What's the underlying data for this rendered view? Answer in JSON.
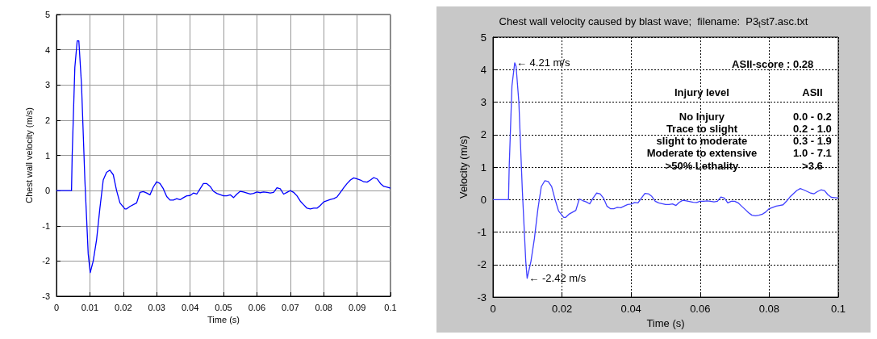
{
  "chart_data": [
    {
      "type": "line",
      "xlabel": "Time (s)",
      "ylabel": "Chest wall velocity (m/s)",
      "xlim": [
        0,
        0.1
      ],
      "ylim": [
        -3,
        5
      ],
      "xticks": [
        0,
        0.01,
        0.02,
        0.03,
        0.04,
        0.05,
        0.06,
        0.07,
        0.08,
        0.09,
        0.1
      ],
      "yticks": [
        -3,
        -2,
        -1,
        0,
        1,
        2,
        3,
        4,
        5
      ],
      "grid": true,
      "marker": "none",
      "line_style": "solid",
      "series": [
        {
          "color": "#0000ff",
          "x": [
            0,
            0.0045,
            0.0047,
            0.0055,
            0.0062,
            0.0067,
            0.0075,
            0.0085,
            0.0095,
            0.0101,
            0.011,
            0.012,
            0.013,
            0.014,
            0.015,
            0.016,
            0.017,
            0.018,
            0.019,
            0.0205,
            0.021,
            0.022,
            0.024,
            0.025,
            0.026,
            0.027,
            0.028,
            0.029,
            0.03,
            0.031,
            0.032,
            0.033,
            0.034,
            0.035,
            0.036,
            0.037,
            0.038,
            0.039,
            0.04,
            0.041,
            0.042,
            0.043,
            0.044,
            0.045,
            0.046,
            0.047,
            0.048,
            0.05,
            0.051,
            0.052,
            0.053,
            0.054,
            0.055,
            0.056,
            0.058,
            0.059,
            0.06,
            0.061,
            0.062,
            0.063,
            0.064,
            0.065,
            0.066,
            0.067,
            0.068,
            0.069,
            0.07,
            0.071,
            0.072,
            0.073,
            0.074,
            0.075,
            0.076,
            0.077,
            0.078,
            0.079,
            0.08,
            0.082,
            0.083,
            0.084,
            0.085,
            0.086,
            0.087,
            0.088,
            0.089,
            0.09,
            0.091,
            0.092,
            0.093,
            0.094,
            0.095,
            0.096,
            0.097,
            0.098,
            0.099,
            0.1
          ],
          "values": [
            0,
            0,
            1.0,
            3.5,
            4.25,
            4.25,
            3.0,
            0.3,
            -1.8,
            -2.33,
            -2.0,
            -1.4,
            -0.5,
            0.3,
            0.52,
            0.58,
            0.45,
            0.0,
            -0.35,
            -0.52,
            -0.52,
            -0.45,
            -0.35,
            -0.05,
            -0.03,
            -0.07,
            -0.12,
            0.1,
            0.25,
            0.2,
            0.05,
            -0.17,
            -0.27,
            -0.27,
            -0.23,
            -0.26,
            -0.2,
            -0.15,
            -0.14,
            -0.07,
            -0.1,
            0.05,
            0.2,
            0.2,
            0.12,
            -0.02,
            -0.08,
            -0.15,
            -0.15,
            -0.12,
            -0.2,
            -0.1,
            -0.02,
            -0.04,
            -0.1,
            -0.08,
            -0.04,
            -0.06,
            -0.04,
            -0.05,
            -0.07,
            -0.05,
            0.08,
            0.05,
            -0.1,
            -0.05,
            0.0,
            -0.05,
            -0.15,
            -0.3,
            -0.4,
            -0.5,
            -0.52,
            -0.5,
            -0.5,
            -0.42,
            -0.32,
            -0.25,
            -0.23,
            -0.18,
            -0.05,
            0.08,
            0.2,
            0.3,
            0.36,
            0.33,
            0.3,
            0.25,
            0.24,
            0.3,
            0.37,
            0.33,
            0.2,
            0.12,
            0.1,
            0.07
          ]
        }
      ]
    },
    {
      "type": "line",
      "title": "Chest wall velocity caused by blast wave;  filename:  P3$_{t}$st7.asc.txt",
      "xlabel": "Time (s)",
      "ylabel": "Velocity (m/s)",
      "xlim": [
        0,
        0.1
      ],
      "ylim": [
        -3,
        5
      ],
      "xticks": [
        0,
        0.02,
        0.04,
        0.06,
        0.08,
        0.1
      ],
      "yticks": [
        -3,
        -2,
        -1,
        0,
        1,
        2,
        3,
        4,
        5
      ],
      "grid": true,
      "marker": "none",
      "line_style": "solid",
      "annotations": [
        {
          "text": "← 4.21 m/s",
          "x": 0.0063,
          "y": 4.21
        },
        {
          "text": "← -2.42 m/s",
          "x": 0.0099,
          "y": -2.42
        },
        "ASII-score : 0.28",
        "Injury level",
        "ASII",
        "No Injury",
        "0.0 - 0.2",
        "Trace to slight",
        "0.2 - 1.0",
        "slight to moderate",
        "0.3 - 1.9",
        "Moderate to extensive",
        "1.0 - 7.1",
        ">50% Lethality",
        ">3.6"
      ],
      "series": [
        {
          "color": "#4040ff",
          "x": [
            0,
            0.0045,
            0.0047,
            0.0055,
            0.0063,
            0.0067,
            0.0075,
            0.0085,
            0.0095,
            0.0099,
            0.011,
            0.012,
            0.013,
            0.014,
            0.015,
            0.016,
            0.017,
            0.018,
            0.019,
            0.0205,
            0.021,
            0.022,
            0.024,
            0.025,
            0.026,
            0.027,
            0.028,
            0.029,
            0.03,
            0.031,
            0.032,
            0.033,
            0.034,
            0.035,
            0.036,
            0.037,
            0.038,
            0.039,
            0.04,
            0.041,
            0.042,
            0.043,
            0.044,
            0.045,
            0.046,
            0.047,
            0.048,
            0.05,
            0.051,
            0.052,
            0.053,
            0.054,
            0.055,
            0.056,
            0.058,
            0.059,
            0.06,
            0.061,
            0.062,
            0.063,
            0.064,
            0.065,
            0.066,
            0.067,
            0.068,
            0.069,
            0.07,
            0.071,
            0.072,
            0.073,
            0.074,
            0.075,
            0.076,
            0.077,
            0.078,
            0.079,
            0.08,
            0.082,
            0.083,
            0.084,
            0.085,
            0.086,
            0.087,
            0.088,
            0.089,
            0.09,
            0.091,
            0.092,
            0.093,
            0.094,
            0.095,
            0.096,
            0.097,
            0.098,
            0.099,
            0.1
          ],
          "values": [
            0,
            0,
            1.0,
            3.5,
            4.21,
            4.1,
            3.0,
            0.3,
            -1.9,
            -2.42,
            -1.9,
            -1.2,
            -0.3,
            0.4,
            0.58,
            0.56,
            0.4,
            0.0,
            -0.35,
            -0.55,
            -0.55,
            -0.45,
            -0.33,
            0.02,
            -0.03,
            -0.07,
            -0.13,
            0.05,
            0.2,
            0.18,
            0.05,
            -0.2,
            -0.28,
            -0.28,
            -0.24,
            -0.25,
            -0.2,
            -0.15,
            -0.14,
            -0.09,
            -0.1,
            0.05,
            0.19,
            0.18,
            0.1,
            -0.05,
            -0.1,
            -0.15,
            -0.15,
            -0.13,
            -0.18,
            -0.08,
            -0.02,
            -0.04,
            -0.08,
            -0.09,
            -0.05,
            -0.05,
            -0.04,
            -0.05,
            -0.07,
            -0.05,
            0.08,
            0.05,
            -0.1,
            -0.05,
            -0.05,
            -0.1,
            -0.2,
            -0.3,
            -0.4,
            -0.48,
            -0.5,
            -0.48,
            -0.45,
            -0.38,
            -0.28,
            -0.2,
            -0.18,
            -0.16,
            -0.05,
            0.08,
            0.18,
            0.28,
            0.34,
            0.3,
            0.25,
            0.2,
            0.18,
            0.25,
            0.3,
            0.28,
            0.15,
            0.07,
            0.06,
            0.05
          ]
        }
      ]
    }
  ]
}
